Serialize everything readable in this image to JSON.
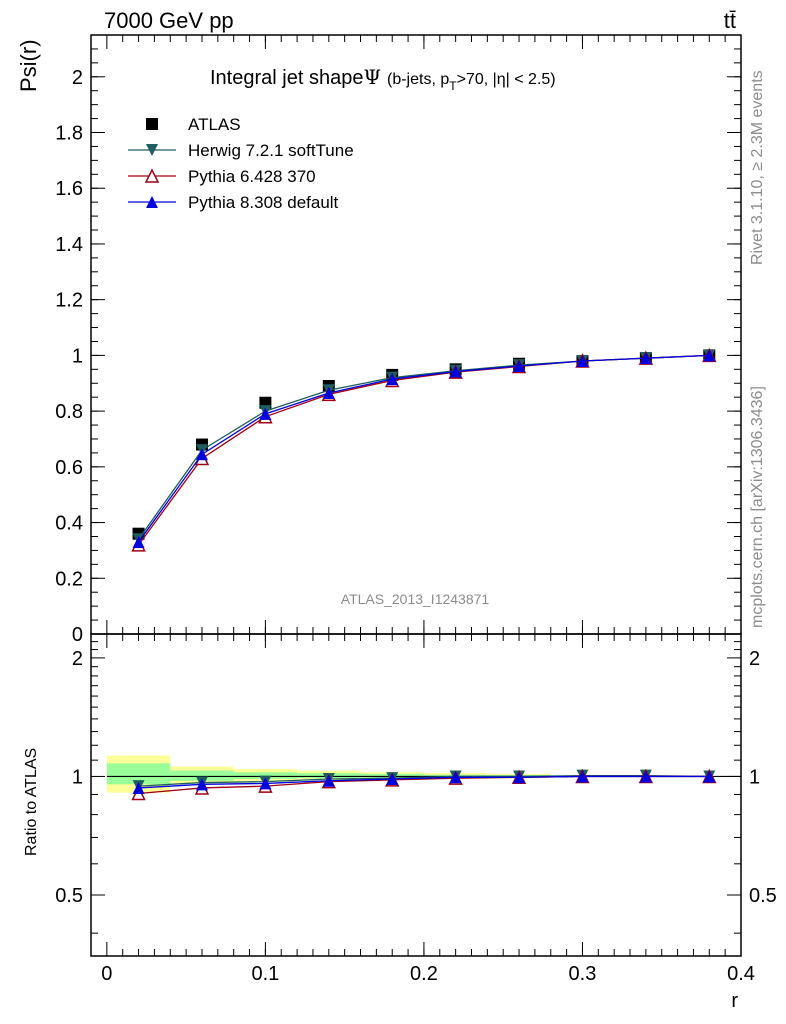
{
  "header": {
    "energy_label": "7000 GeV pp",
    "process_label": "tt̄"
  },
  "side": {
    "rivet_label": "Rivet 3.1.10, ≥ 2.3M events",
    "mcplots_label": "mcplots.cern.ch [arXiv:1306.3436]"
  },
  "plot": {
    "title_main": "Integral jet shape",
    "title_psi": "Ψ",
    "title_detail": "(b-jets, p",
    "title_sub": "T",
    "title_tail": ">70, |η| < 2.5)",
    "watermark": "ATLAS_2013_I1243871"
  },
  "chart_data": [
    {
      "type": "line",
      "name": "main",
      "xlabel": "",
      "ylabel": "Psi(r)",
      "xlim": [
        -0.01,
        0.4
      ],
      "ylim": [
        0,
        2.15
      ],
      "yticks": [
        0,
        0.2,
        0.4,
        0.6,
        0.8,
        1,
        1.2,
        1.4,
        1.6,
        1.8,
        2
      ],
      "ytick_labels": [
        "0",
        "0.2",
        "0.4",
        "0.6",
        "0.8",
        "1",
        "1.2",
        "1.4",
        "1.6",
        "1.8",
        "2"
      ],
      "legend_position": "top-left",
      "x": [
        0.02,
        0.06,
        0.1,
        0.14,
        0.18,
        0.22,
        0.26,
        0.3,
        0.34,
        0.38
      ],
      "series": [
        {
          "name": "ATLAS",
          "marker": "square",
          "color": "#000000",
          "values": [
            0.36,
            0.68,
            0.83,
            0.89,
            0.93,
            0.95,
            0.97,
            0.98,
            0.99,
            1.0
          ]
        },
        {
          "name": "Herwig 7.2.1 softTune",
          "marker": "triangle-down",
          "color": "#1d5e5e",
          "values": [
            0.34,
            0.66,
            0.8,
            0.875,
            0.92,
            0.945,
            0.965,
            0.98,
            0.99,
            1.0
          ]
        },
        {
          "name": "Pythia 6.428 370",
          "marker": "triangle-open",
          "color": "#a10015",
          "values": [
            0.32,
            0.63,
            0.78,
            0.86,
            0.91,
            0.94,
            0.96,
            0.98,
            0.99,
            1.0
          ]
        },
        {
          "name": "Pythia 8.308 default",
          "marker": "triangle-up",
          "color": "#0000dd",
          "values": [
            0.33,
            0.645,
            0.79,
            0.865,
            0.915,
            0.942,
            0.962,
            0.98,
            0.99,
            1.0
          ]
        }
      ]
    },
    {
      "type": "line",
      "name": "ratio",
      "xlabel": "r",
      "ylabel": "Ratio to ATLAS",
      "xlim": [
        -0.01,
        0.4
      ],
      "ylim": [
        0.35,
        2.3
      ],
      "xticks": [
        0,
        0.1,
        0.2,
        0.3,
        0.4
      ],
      "xtick_labels": [
        "0",
        "0.1",
        "0.2",
        "0.3",
        "0.4"
      ],
      "yticks": [
        0.5,
        1,
        2
      ],
      "ytick_labels": [
        "0.5",
        "1",
        "2"
      ],
      "uncertainty_bands": {
        "edges": [
          0.0,
          0.04,
          0.08,
          0.12,
          0.16,
          0.2,
          0.24,
          0.28
        ],
        "outer": {
          "color": "#ffff99",
          "low": [
            0.91,
            0.96,
            0.97,
            0.98,
            0.985,
            0.99,
            0.99
          ],
          "high": [
            1.13,
            1.06,
            1.045,
            1.035,
            1.025,
            1.02,
            1.015
          ]
        },
        "inner": {
          "color": "#99ff99",
          "low": [
            0.955,
            0.975,
            0.985,
            0.99,
            0.993,
            0.995,
            0.996
          ],
          "high": [
            1.08,
            1.035,
            1.025,
            1.02,
            1.015,
            1.01,
            1.008
          ]
        }
      },
      "x": [
        0.02,
        0.06,
        0.1,
        0.14,
        0.18,
        0.22,
        0.26,
        0.3,
        0.34,
        0.38
      ],
      "series": [
        {
          "name": "Herwig 7.2.1 softTune",
          "marker": "triangle-down",
          "color": "#1d5e5e",
          "values": [
            0.945,
            0.965,
            0.97,
            0.985,
            0.99,
            1.0,
            1.0,
            1.005,
            1.005,
            1.0
          ]
        },
        {
          "name": "Pythia 6.428 370",
          "marker": "triangle-open",
          "color": "#a10015",
          "values": [
            0.905,
            0.935,
            0.945,
            0.97,
            0.98,
            0.99,
            0.995,
            1.0,
            1.0,
            1.0
          ]
        },
        {
          "name": "Pythia 8.308 default",
          "marker": "triangle-up",
          "color": "#0000dd",
          "values": [
            0.935,
            0.955,
            0.96,
            0.975,
            0.985,
            0.995,
            0.995,
            1.0,
            1.0,
            1.0
          ]
        }
      ]
    }
  ]
}
